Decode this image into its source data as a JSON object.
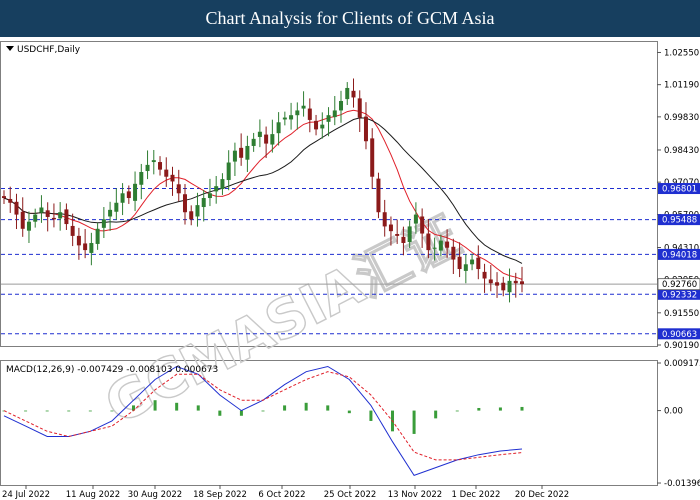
{
  "banner": {
    "title": "Chart Analysis for Clients of GCM Asia"
  },
  "watermark": {
    "text": "GCMASIA汇证"
  },
  "colors": {
    "banner_bg": "#173f5f",
    "candle_up": "#2e7d32",
    "candle_down": "#8b1a1a",
    "ma_fast": "#e0202a",
    "ma_slow": "#1a1a1a",
    "level_line": "#1f2fd0",
    "macd_line": "#1f2fd0",
    "signal_line": "#e0202a",
    "histogram": "#3a9d3a"
  },
  "chart_data": [
    {
      "type": "candlestick",
      "symbol_label": "USDCHF,Daily",
      "timeframe": "Daily",
      "x_tick_labels": [
        "24 Jul 2022",
        "11 Aug 2022",
        "30 Aug 2022",
        "18 Sep 2022",
        "6 Oct 2022",
        "25 Oct 2022",
        "13 Nov 2022",
        "1 Dec 2022",
        "20 Dec 2022"
      ],
      "ylim": [
        0.9019,
        1.0295
      ],
      "y_tick_labels": [
        "1.02550",
        "1.01190",
        "0.99830",
        "0.98430",
        "0.97070",
        "0.95700",
        "0.94310",
        "0.92950",
        "0.91550",
        "0.90190"
      ],
      "y_tick_values": [
        1.0255,
        1.0119,
        0.9983,
        0.9843,
        0.9707,
        0.957,
        0.9431,
        0.9295,
        0.9155,
        0.9019
      ],
      "levels": [
        {
          "label": "0.96801",
          "value": 0.96801,
          "style": "dashed"
        },
        {
          "label": "0.95488",
          "value": 0.95488,
          "style": "dashed"
        },
        {
          "label": "0.94018",
          "value": 0.94018,
          "style": "dashed"
        },
        {
          "label": "0.92332",
          "value": 0.92332,
          "style": "dashed"
        },
        {
          "label": "0.90663",
          "value": 0.90663,
          "style": "dashed"
        }
      ],
      "current_price": {
        "label": "0.92760",
        "value": 0.9276
      },
      "close_approx": [
        0.964,
        0.962,
        0.957,
        0.951,
        0.954,
        0.957,
        0.96,
        0.956,
        0.955,
        0.958,
        0.953,
        0.948,
        0.944,
        0.942,
        0.945,
        0.951,
        0.955,
        0.959,
        0.962,
        0.966,
        0.964,
        0.97,
        0.975,
        0.978,
        0.98,
        0.976,
        0.973,
        0.971,
        0.966,
        0.958,
        0.955,
        0.961,
        0.964,
        0.966,
        0.969,
        0.972,
        0.979,
        0.984,
        0.981,
        0.986,
        0.989,
        0.992,
        0.987,
        0.991,
        0.996,
        0.998,
        0.999,
        1.001,
        1.003,
        0.997,
        0.993,
        0.995,
        0.999,
        1.001,
        1.005,
        1.0105,
        1.0065,
        0.998,
        0.988,
        0.973,
        0.958,
        0.952,
        0.95,
        0.948,
        0.945,
        0.952,
        0.957,
        0.949,
        0.942,
        0.943,
        0.946,
        0.943,
        0.938,
        0.934,
        0.936,
        0.938,
        0.934,
        0.93,
        0.928,
        0.927,
        0.925,
        0.929,
        0.928,
        0.9276
      ]
    },
    {
      "type": "line",
      "label": "MACD(12,26,9) -0.007429 -0.008103 0.000673",
      "indicator": "MACD(12,26,9)",
      "values": {
        "macd": -0.007429,
        "signal": -0.008103,
        "histogram": 0.000673
      },
      "ylim": [
        -0.01396,
        0.009173
      ],
      "y_tick_labels": [
        "0.009173",
        "0.00",
        "-0.013965"
      ],
      "y_tick_values": [
        0.009173,
        0.0,
        -0.013965
      ],
      "series": [
        {
          "name": "MACD",
          "values": [
            -0.001,
            -0.003,
            -0.005,
            -0.005,
            -0.004,
            -0.002,
            0.002,
            0.006,
            0.0085,
            0.007,
            0.003,
            0.0,
            0.002,
            0.005,
            0.0075,
            0.0085,
            0.006,
            0.001,
            -0.006,
            -0.0125,
            -0.011,
            -0.0095,
            -0.0085,
            -0.0078,
            -0.0074
          ]
        },
        {
          "name": "Signal",
          "values": [
            0.0,
            -0.002,
            -0.004,
            -0.005,
            -0.004,
            -0.003,
            0.0,
            0.004,
            0.007,
            0.007,
            0.004,
            0.002,
            0.002,
            0.004,
            0.006,
            0.0075,
            0.0065,
            0.003,
            -0.002,
            -0.008,
            -0.0095,
            -0.0095,
            -0.009,
            -0.0085,
            -0.0081
          ]
        },
        {
          "name": "Histogram",
          "values": [
            0.0,
            0.0,
            0.0,
            0.0,
            0.0,
            0.0,
            0.001,
            0.002,
            0.0015,
            0.001,
            -0.001,
            -0.001,
            0.0,
            0.001,
            0.0015,
            0.001,
            -0.0005,
            -0.002,
            -0.004,
            -0.0045,
            -0.0015,
            0.0,
            0.0005,
            0.0006,
            0.0007
          ]
        }
      ]
    }
  ]
}
